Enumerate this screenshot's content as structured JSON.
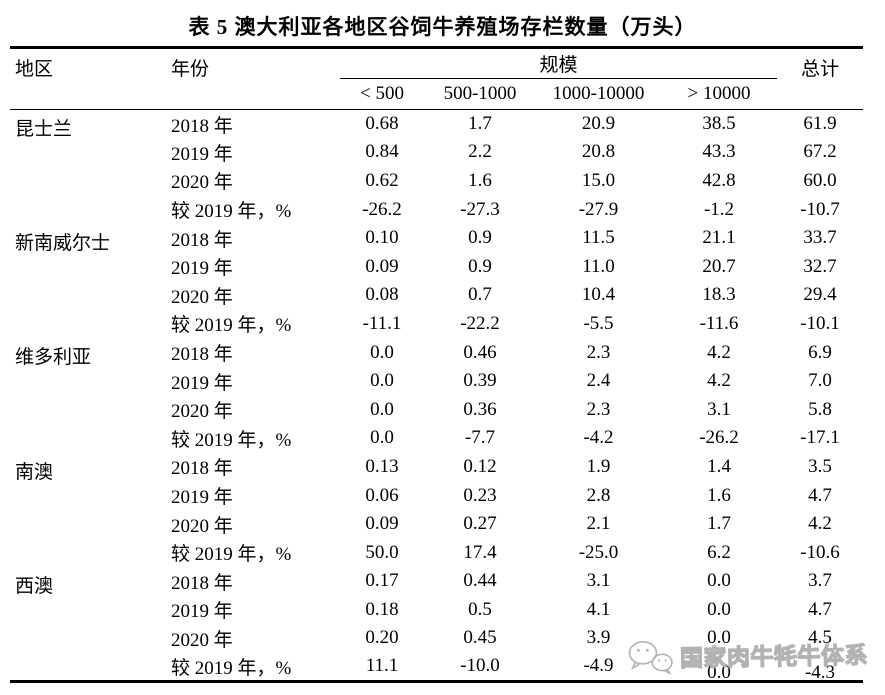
{
  "title": "表 5 澳大利亚各地区谷饲牛养殖场存栏数量（万头）",
  "table": {
    "headers": {
      "region": "地区",
      "year": "年份",
      "scale": "规模",
      "total": "总计",
      "scale_cols": [
        "< 500",
        "500-1000",
        "1000-10000",
        "> 10000"
      ]
    },
    "regions": [
      {
        "name": "昆士兰",
        "rows": [
          {
            "year": "2018 年",
            "values": [
              "0.68",
              "1.7",
              "20.9",
              "38.5",
              "61.9"
            ]
          },
          {
            "year": "2019 年",
            "values": [
              "0.84",
              "2.2",
              "20.8",
              "43.3",
              "67.2"
            ]
          },
          {
            "year": "2020 年",
            "values": [
              "0.62",
              "1.6",
              "15.0",
              "42.8",
              "60.0"
            ]
          },
          {
            "year": "较 2019 年，%",
            "values": [
              "-26.2",
              "-27.3",
              "-27.9",
              "-1.2",
              "-10.7"
            ]
          }
        ]
      },
      {
        "name": "新南威尔士",
        "rows": [
          {
            "year": "2018 年",
            "values": [
              "0.10",
              "0.9",
              "11.5",
              "21.1",
              "33.7"
            ]
          },
          {
            "year": "2019 年",
            "values": [
              "0.09",
              "0.9",
              "11.0",
              "20.7",
              "32.7"
            ]
          },
          {
            "year": "2020 年",
            "values": [
              "0.08",
              "0.7",
              "10.4",
              "18.3",
              "29.4"
            ]
          },
          {
            "year": "较 2019 年，%",
            "values": [
              "-11.1",
              "-22.2",
              "-5.5",
              "-11.6",
              "-10.1"
            ]
          }
        ]
      },
      {
        "name": "维多利亚",
        "rows": [
          {
            "year": "2018 年",
            "values": [
              "0.0",
              "0.46",
              "2.3",
              "4.2",
              "6.9"
            ]
          },
          {
            "year": "2019 年",
            "values": [
              "0.0",
              "0.39",
              "2.4",
              "4.2",
              "7.0"
            ]
          },
          {
            "year": "2020 年",
            "values": [
              "0.0",
              "0.36",
              "2.3",
              "3.1",
              "5.8"
            ]
          },
          {
            "year": "较 2019 年，%",
            "values": [
              "0.0",
              "-7.7",
              "-4.2",
              "-26.2",
              "-17.1"
            ]
          }
        ]
      },
      {
        "name": "南澳",
        "rows": [
          {
            "year": "2018 年",
            "values": [
              "0.13",
              "0.12",
              "1.9",
              "1.4",
              "3.5"
            ]
          },
          {
            "year": "2019 年",
            "values": [
              "0.06",
              "0.23",
              "2.8",
              "1.6",
              "4.7"
            ]
          },
          {
            "year": "2020 年",
            "values": [
              "0.09",
              "0.27",
              "2.1",
              "1.7",
              "4.2"
            ]
          },
          {
            "year": "较 2019 年，%",
            "values": [
              "50.0",
              "17.4",
              "-25.0",
              "6.2",
              "-10.6"
            ]
          }
        ]
      },
      {
        "name": "西澳",
        "rows": [
          {
            "year": "2018 年",
            "values": [
              "0.17",
              "0.44",
              "3.1",
              "0.0",
              "3.7"
            ]
          },
          {
            "year": "2019 年",
            "values": [
              "0.18",
              "0.5",
              "4.1",
              "0.0",
              "4.7"
            ]
          },
          {
            "year": "2020 年",
            "values": [
              "0.20",
              "0.45",
              "3.9",
              "0.0",
              "4.5"
            ]
          },
          {
            "year": "较 2019 年，%",
            "values": [
              "11.1",
              "-10.0",
              "-4.9",
              "0.0",
              "-4.3"
            ]
          }
        ]
      }
    ]
  },
  "watermark": {
    "text": "国家肉牛牦牛体系",
    "icon": "wechat-icon",
    "color": "#b2b2b2"
  }
}
